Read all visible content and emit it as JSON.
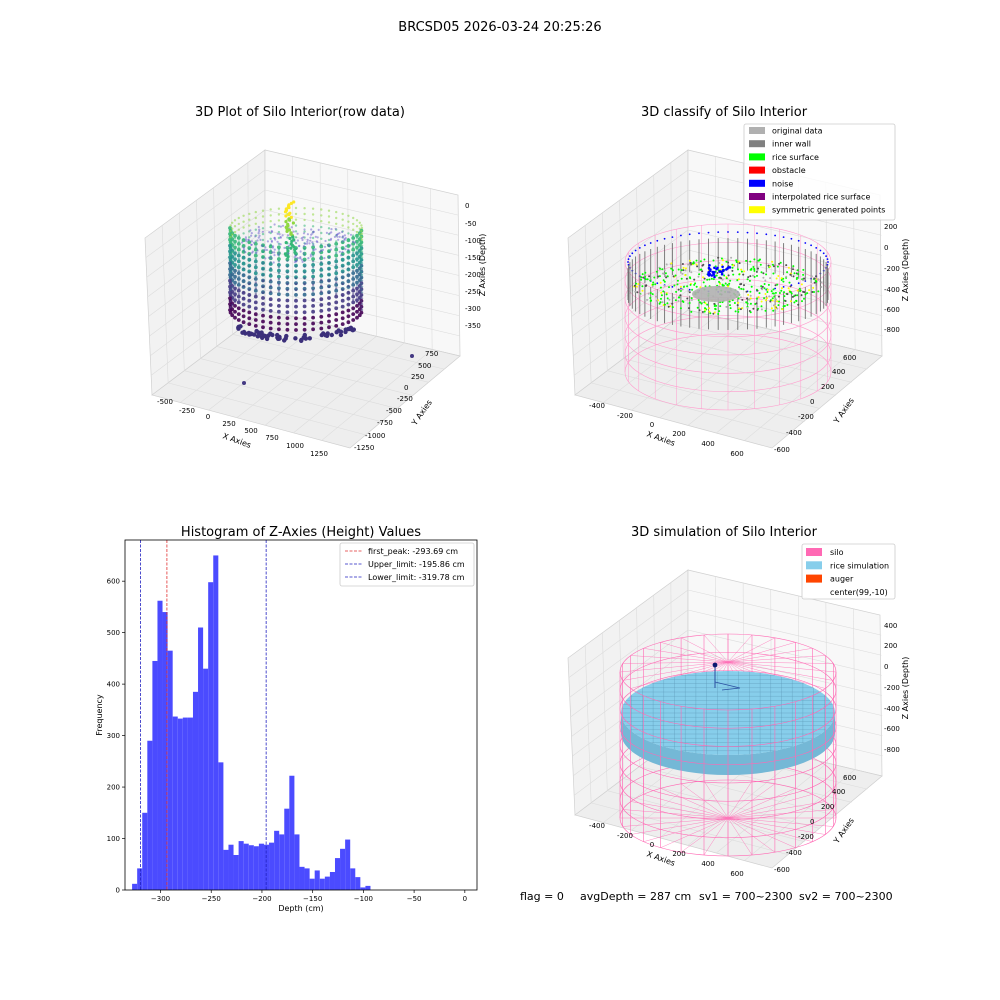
{
  "suptitle": "BRCSD05 2026-03-24 20:25:26",
  "footer": {
    "flag": "flag = 0",
    "avg": "avgDepth = 287 cm",
    "sv1": "sv1 = 700~2300",
    "sv2": "sv2 = 700~2300"
  },
  "colors": {
    "bars": "#4b4bff",
    "first_peak": "#e03030",
    "limits": "#2020c0",
    "pink": "#ff69b4",
    "rice": "#87ceeb",
    "auger": "#ff4500"
  },
  "chart_data": [
    {
      "type": "scatter",
      "title": "3D Plot of Silo Interior(row data)",
      "xlabel": "X Axies",
      "ylabel": "Y Axies",
      "zlabel": "Z Axies (Depth)",
      "x_ticks": [
        "-500",
        "-250",
        "0",
        "250",
        "500",
        "750",
        "1000",
        "1250"
      ],
      "y_ticks": [
        "750",
        "500",
        "250",
        "0",
        "-250",
        "-500",
        "-750",
        "-1000",
        "-1250"
      ],
      "z_ticks": [
        "0",
        "-50",
        "-100",
        "-150",
        "-200",
        "-250",
        "-300",
        "-350"
      ],
      "colormap": "viridis"
    },
    {
      "type": "scatter",
      "title": "3D classify of Silo Interior",
      "xlabel": "X Axies",
      "ylabel": "Y Axies",
      "zlabel": "Z Axies (Depth)",
      "x_ticks": [
        "-400",
        "-200",
        "0",
        "200",
        "400",
        "600"
      ],
      "y_ticks": [
        "600",
        "400",
        "200",
        "0",
        "-200",
        "-400",
        "-600"
      ],
      "z_ticks": [
        "200",
        "0",
        "-200",
        "-400",
        "-600",
        "-800"
      ],
      "legend": [
        {
          "label": "original data",
          "color": "#b0b0b0"
        },
        {
          "label": "inner wall",
          "color": "#808080"
        },
        {
          "label": "rice surface",
          "color": "#00ff00"
        },
        {
          "label": "obstacle",
          "color": "#ff0000"
        },
        {
          "label": "noise",
          "color": "#0000ff"
        },
        {
          "label": "interpolated rice surface",
          "color": "#800080"
        },
        {
          "label": "symmetric generated points",
          "color": "#ffff00"
        }
      ]
    },
    {
      "type": "bar",
      "title": "Histogram of Z-Axies (Height) Values",
      "xlabel": "Depth (cm)",
      "ylabel": "Frequency",
      "xlim": [
        -335,
        12
      ],
      "ylim": [
        0,
        680
      ],
      "x_ticks": [
        -300,
        -250,
        -200,
        -150,
        -100,
        -50,
        0
      ],
      "y_ticks": [
        0,
        100,
        200,
        300,
        400,
        500,
        600
      ],
      "bin_width": 5,
      "bin_start": -328,
      "values": [
        12,
        42,
        150,
        290,
        445,
        562,
        540,
        465,
        337,
        333,
        335,
        335,
        385,
        510,
        430,
        598,
        650,
        248,
        78,
        88,
        68,
        95,
        90,
        87,
        85,
        90,
        88,
        92,
        115,
        108,
        158,
        222,
        108,
        45,
        42,
        22,
        38,
        22,
        26,
        35,
        62,
        80,
        98,
        42,
        25,
        5,
        8
      ],
      "vlines": [
        {
          "label": "first_peak: -293.69 cm",
          "x": -293.69,
          "style": "first_peak"
        },
        {
          "label": "Upper_limit: -195.86 cm",
          "x": -195.86,
          "style": "limits"
        },
        {
          "label": "Lower_limit: -319.78 cm",
          "x": -319.78,
          "style": "limits"
        }
      ]
    },
    {
      "type": "scatter",
      "title": "3D simulation of Silo Interior",
      "xlabel": "X Axies",
      "ylabel": "Y Axies",
      "zlabel": "Z Axies (Depth)",
      "x_ticks": [
        "-400",
        "-200",
        "0",
        "200",
        "400",
        "600"
      ],
      "y_ticks": [
        "600",
        "400",
        "200",
        "0",
        "-200",
        "-400",
        "-600"
      ],
      "z_ticks": [
        "400",
        "200",
        "0",
        "-200",
        "-400",
        "-600",
        "-800"
      ],
      "legend": [
        {
          "label": "silo",
          "color": "#ff69b4"
        },
        {
          "label": "rice simulation",
          "color": "#87ceeb"
        },
        {
          "label": "auger",
          "color": "#ff4500"
        },
        {
          "label": "center(99,-10)",
          "color": "#ffffff"
        }
      ]
    }
  ]
}
